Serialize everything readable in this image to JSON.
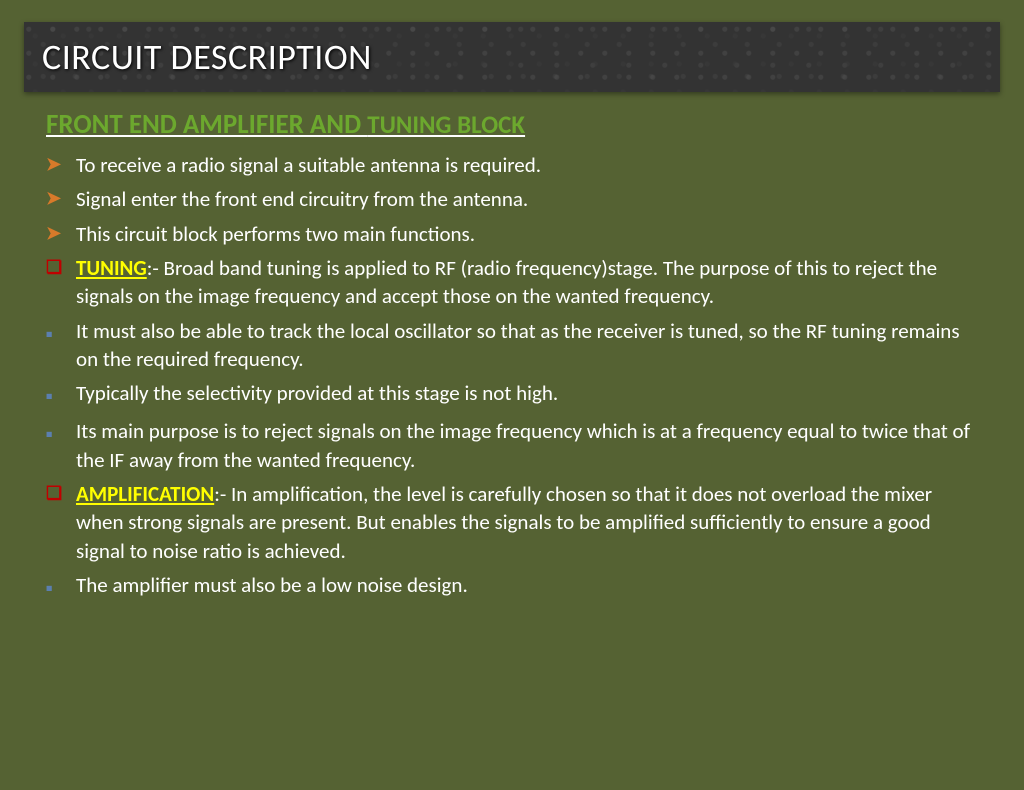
{
  "colors": {
    "background": "#556233",
    "title_bar_bg": "#333333",
    "title_text": "#ffffff",
    "subtitle": "#6ca82e",
    "body_text": "#ffffff",
    "keyword": "#ffff00",
    "marker_arrow": "#d87a2a",
    "marker_square_red": "#c00000",
    "marker_square_blue": "#5b7fb0"
  },
  "fonts": {
    "title_size_pt": 28,
    "subtitle_size_pt": 20,
    "body_size_pt": 16
  },
  "title": "CIRCUIT DESCRIPTION",
  "subtitle": {
    "part_a": "FRONT END AMPLIFIER AND ",
    "part_b": "TUNING BLOCK"
  },
  "bullets": [
    {
      "marker": "arrow",
      "text": "To receive a radio signal a suitable antenna is required."
    },
    {
      "marker": "arrow",
      "text": "Signal enter the front end circuitry from the antenna."
    },
    {
      "marker": "arrow",
      "text": "This circuit block performs two main functions."
    },
    {
      "marker": "red",
      "keyword": "TUNING",
      "text": ":- Broad band tuning is applied to RF (radio frequency)stage. The purpose of this to reject the signals on the image frequency and accept those on the wanted frequency."
    },
    {
      "marker": "blue",
      "text": "It must also be able to track the local oscillator so that as the receiver is tuned, so the RF tuning remains on the required frequency."
    },
    {
      "marker": "blue",
      "text": "Typically the selectivity provided at this stage is not high."
    },
    {
      "marker": "blue",
      "text": "Its main purpose is to reject signals on the image frequency which is at a frequency equal to twice that of the IF away from the wanted frequency."
    },
    {
      "marker": "red",
      "keyword": "AMPLIFICATION",
      "text": ":- In amplification, the level is carefully chosen so that it does not overload the mixer when strong signals are present. But enables the signals to be amplified sufficiently to ensure a good signal to noise ratio is achieved."
    },
    {
      "marker": "blue",
      "text": "The amplifier  must also be a low noise design."
    }
  ]
}
